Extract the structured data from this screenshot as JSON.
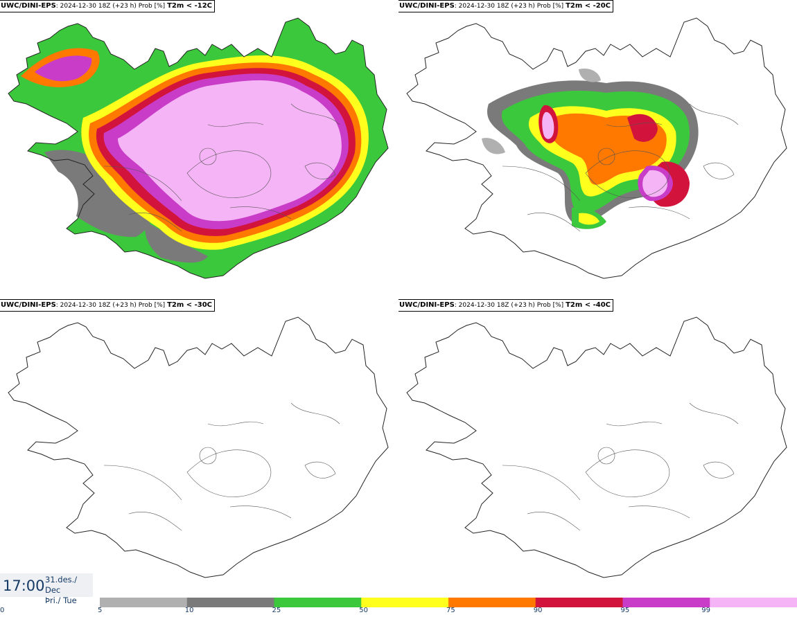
{
  "panels": [
    {
      "model": "UWC/DINI-EPS",
      "run": "2024-12-30 18Z (+23 h) Prob [%]",
      "threshold": "T2m < -12C"
    },
    {
      "model": "UWC/DINI-EPS",
      "run": "2024-12-30 18Z (+23 h) Prob [%]",
      "threshold": "T2m < -20C"
    },
    {
      "model": "UWC/DINI-EPS",
      "run": "2024-12-30 18Z (+23 h) Prob [%]",
      "threshold": "T2m < -30C"
    },
    {
      "model": "UWC/DINI-EPS",
      "run": "2024-12-30 18Z (+23 h) Prob [%]",
      "threshold": "T2m < -40C"
    }
  ],
  "valid_time": {
    "time": "17:00",
    "date": "31.des./ Dec",
    "day": "Þri./ Tue"
  },
  "colorbar": {
    "ticks": [
      "0",
      "5",
      "10",
      "25",
      "50",
      "75",
      "90",
      "95",
      "99"
    ],
    "segments": [
      {
        "from": "5",
        "to": "10",
        "color": "#b0b0b0"
      },
      {
        "from": "10",
        "to": "25",
        "color": "#7a7a7a"
      },
      {
        "from": "25",
        "to": "50",
        "color": "#3cc83c"
      },
      {
        "from": "50",
        "to": "75",
        "color": "#ffff1e"
      },
      {
        "from": "75",
        "to": "90",
        "color": "#ff7800"
      },
      {
        "from": "90",
        "to": "95",
        "color": "#d2143c"
      },
      {
        "from": "95",
        "to": "99",
        "color": "#c83cc8"
      },
      {
        "from": "99",
        "to": "",
        "color": "#f5b4f5"
      }
    ]
  }
}
